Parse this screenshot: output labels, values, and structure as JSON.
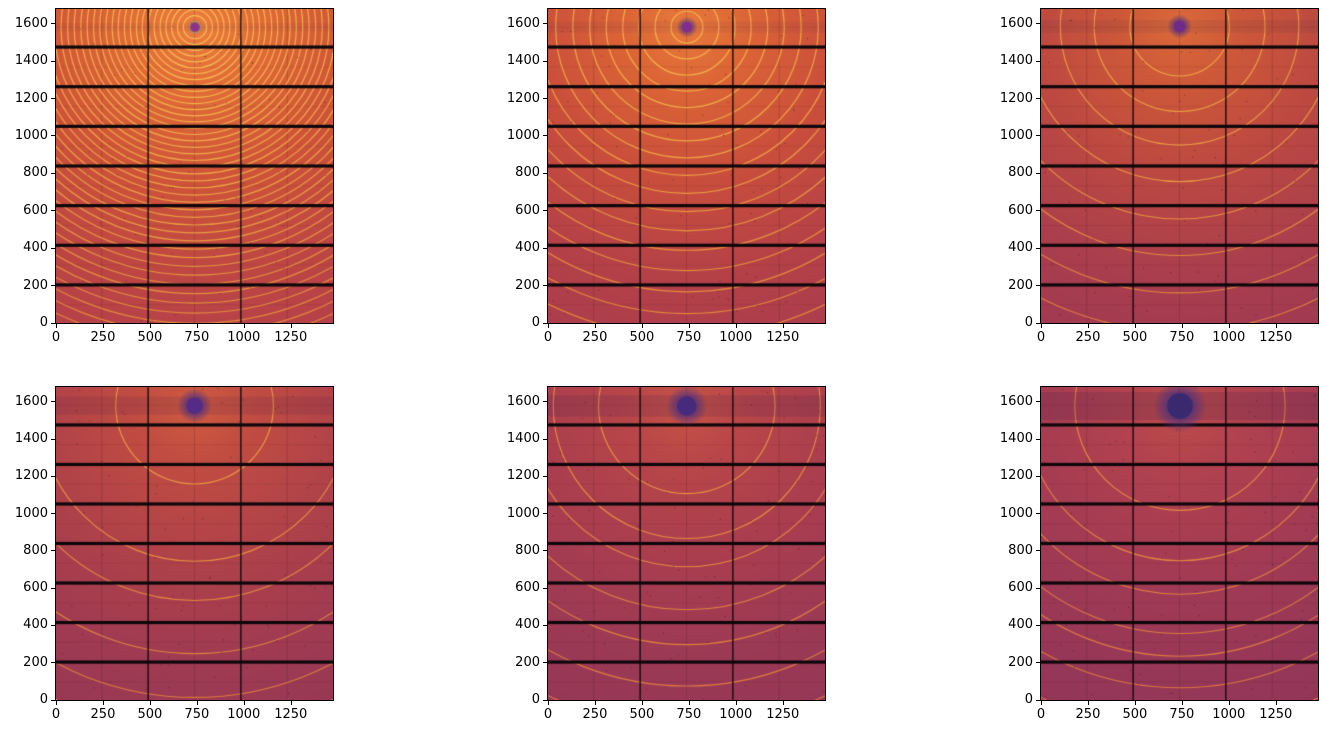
{
  "figure": {
    "background_color": "#ffffff",
    "description_ticks_only": true
  },
  "chart_data": {
    "type": "heatmap",
    "layout": "2x3 grid of X-ray area-detector diffraction images, no titles, no axis labels, no legend",
    "x_range": [
      0,
      1475
    ],
    "y_range": [
      0,
      1679
    ],
    "x_ticks": [
      0,
      250,
      500,
      750,
      1000,
      1250
    ],
    "y_ticks": [
      0,
      200,
      400,
      600,
      800,
      1000,
      1200,
      1400,
      1600
    ],
    "x_tick_labels": [
      "0",
      "250",
      "500",
      "750",
      "1000",
      "1250"
    ],
    "y_tick_labels": [
      "0",
      "200",
      "400",
      "600",
      "800",
      "1000",
      "1200",
      "1400",
      "1600"
    ],
    "grid": false,
    "detector": {
      "h_gap_spans": [
        [
          195,
          212
        ],
        [
          407,
          424
        ],
        [
          619,
          636
        ],
        [
          831,
          848
        ],
        [
          1043,
          1060
        ],
        [
          1255,
          1272
        ],
        [
          1467,
          1484
        ]
      ],
      "v_gap_spans": [
        [
          487,
          494
        ],
        [
          981,
          988
        ]
      ],
      "module_col_centers": [
        243.5,
        737.5,
        1231.5
      ],
      "module_row_centers": [
        97.5,
        309.5,
        521.5,
        733.5,
        945.5,
        1157.5,
        1369.5,
        1581.5
      ],
      "gap_color": "#0c060a",
      "chip_line_color": "rgba(60,20,32,0.30)"
    },
    "panels": [
      {
        "name": "panel-1",
        "grid_position": {
          "row": 0,
          "col": 0
        },
        "beam_center": {
          "x": 740,
          "y": 1582
        },
        "beamstop": {
          "radius": 20,
          "core_color": "#8c3192",
          "halo_alpha": 0.45,
          "streak_alpha": 0.05
        },
        "ring_radii": [
          31,
          62,
          93,
          124,
          155,
          186,
          218,
          249,
          281,
          312,
          344,
          376,
          409,
          441,
          474,
          507,
          540,
          574,
          608,
          643,
          678,
          713,
          749,
          785,
          822,
          860,
          898,
          937,
          977,
          1017,
          1058,
          1100,
          1143,
          1187,
          1232,
          1279,
          1326,
          1375,
          1425,
          1476,
          1529,
          1584,
          1640,
          1699,
          1759
        ],
        "ring_color_inner": "#f9c255",
        "ring_color_outer": "#e08438",
        "ring_width": 6.5,
        "bg_stops": [
          [
            0,
            "#ec7e3e"
          ],
          [
            0.18,
            "#e26d37"
          ],
          [
            0.45,
            "#cf5439"
          ],
          [
            0.75,
            "#bd4644"
          ],
          [
            1,
            "#b4404a"
          ]
        ]
      },
      {
        "name": "panel-2",
        "grid_position": {
          "row": 0,
          "col": 1
        },
        "beam_center": {
          "x": 740,
          "y": 1582
        },
        "beamstop": {
          "radius": 27,
          "core_color": "#7f2d90",
          "halo_alpha": 0.45,
          "streak_alpha": 0.07
        },
        "ring_radii": [
          85,
          170,
          256,
          342,
          430,
          518,
          608,
          699,
          793,
          889,
          987,
          1089,
          1193,
          1302,
          1415,
          1532,
          1655
        ],
        "ring_color_inner": "#f6b84e",
        "ring_color_outer": "#e08038",
        "ring_width": 6.5,
        "bg_stops": [
          [
            0,
            "#e87a3c"
          ],
          [
            0.18,
            "#dc6536"
          ],
          [
            0.45,
            "#c94e3c"
          ],
          [
            0.75,
            "#b44148"
          ],
          [
            1,
            "#ab3d4d"
          ]
        ]
      },
      {
        "name": "panel-3",
        "grid_position": {
          "row": 0,
          "col": 2
        },
        "beam_center": {
          "x": 738,
          "y": 1586
        },
        "beamstop": {
          "radius": 31,
          "core_color": "#6e2b8c",
          "halo_alpha": 0.48,
          "streak_alpha": 0.09
        },
        "ring_radii": [
          265,
          455,
          635,
          830,
          1030,
          1225,
          1425,
          1630
        ],
        "ring_color_inner": "#f3ad48",
        "ring_color_outer": "#dd7c3a",
        "ring_width": 6,
        "bg_stops": [
          [
            0,
            "#db6a3a"
          ],
          [
            0.18,
            "#cd5839"
          ],
          [
            0.45,
            "#bb4842"
          ],
          [
            0.75,
            "#a93e4e"
          ],
          [
            1,
            "#a03a52"
          ]
        ]
      },
      {
        "name": "panel-4",
        "grid_position": {
          "row": 1,
          "col": 0
        },
        "beam_center": {
          "x": 738,
          "y": 1579
        },
        "beamstop": {
          "radius": 44,
          "core_color": "#542c85",
          "halo_alpha": 0.5,
          "streak_alpha": 0.12
        },
        "ring_radii": [
          420,
          835,
          1045,
          1330,
          1565,
          1740
        ],
        "ring_color_inner": "#f0a244",
        "ring_color_outer": "#da783c",
        "ring_width": 6,
        "bg_stops": [
          [
            0,
            "#cf5b3f"
          ],
          [
            0.18,
            "#c04c42"
          ],
          [
            0.45,
            "#b04249"
          ],
          [
            0.75,
            "#a03b52"
          ],
          [
            1,
            "#983855"
          ]
        ]
      },
      {
        "name": "panel-5",
        "grid_position": {
          "row": 1,
          "col": 1
        },
        "beam_center": {
          "x": 739,
          "y": 1577
        },
        "beamstop": {
          "radius": 52,
          "core_color": "#462b7d",
          "halo_alpha": 0.5,
          "streak_alpha": 0.15
        },
        "ring_radii": [
          470,
          711,
          862,
          1093,
          1280,
          1502,
          1720
        ],
        "ring_color_inner": "#ee9c42",
        "ring_color_outer": "#d8743e",
        "ring_width": 6,
        "bg_stops": [
          [
            0,
            "#c65345"
          ],
          [
            0.18,
            "#b84649"
          ],
          [
            0.45,
            "#aa3e4f"
          ],
          [
            0.75,
            "#9c3a55"
          ],
          [
            1,
            "#943757"
          ]
        ]
      },
      {
        "name": "panel-6",
        "grid_position": {
          "row": 1,
          "col": 2
        },
        "beam_center": {
          "x": 740,
          "y": 1577
        },
        "beamstop": {
          "radius": 68,
          "core_color": "#392a70",
          "halo_alpha": 0.52,
          "streak_alpha": 0.18
        },
        "ring_radii": [
          560,
          830,
          1010,
          1220,
          1342,
          1511,
          1730
        ],
        "ring_color_inner": "#ec9640",
        "ring_color_outer": "#d67240",
        "ring_width": 6,
        "bg_stops": [
          [
            0,
            "#bf4d49"
          ],
          [
            0.18,
            "#b2424e"
          ],
          [
            0.45,
            "#a53c53"
          ],
          [
            0.75,
            "#993857"
          ],
          [
            1,
            "#913659"
          ]
        ]
      }
    ]
  }
}
